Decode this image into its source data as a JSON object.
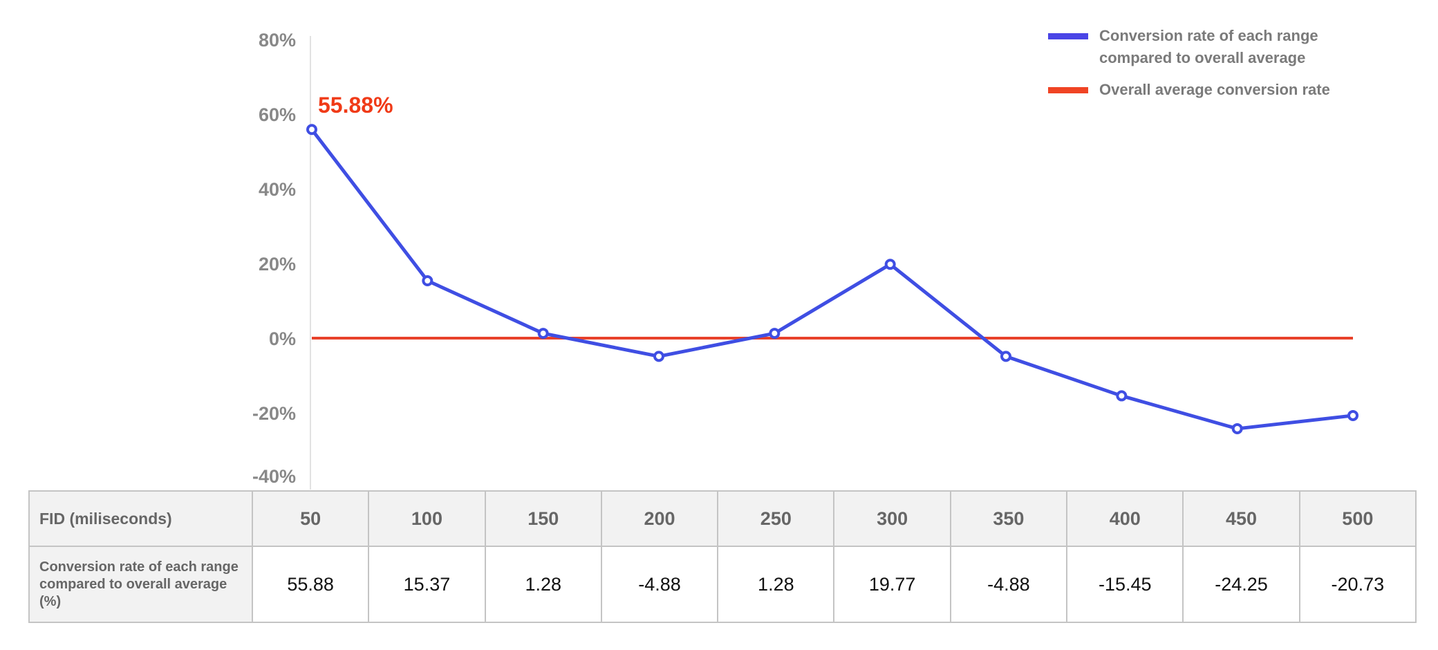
{
  "chart_data": {
    "type": "line",
    "title": "",
    "xlabel": "FID (miliseconds)",
    "ylabel": "",
    "ylim": [
      -40,
      80
    ],
    "y_ticks": [
      "80%",
      "60%",
      "40%",
      "20%",
      "0%",
      "-20%",
      "-40%"
    ],
    "y_tick_values": [
      80,
      60,
      40,
      20,
      0,
      -20,
      -40
    ],
    "categories": [
      "50",
      "100",
      "150",
      "200",
      "250",
      "300",
      "350",
      "400",
      "450",
      "500"
    ],
    "series": [
      {
        "name": "Conversion rate of each range compared to overall average",
        "color": "#3f4ee3",
        "values": [
          55.88,
          15.37,
          1.28,
          -4.88,
          1.28,
          19.77,
          -4.88,
          -15.45,
          -24.25,
          -20.73
        ],
        "markers": "hollow-circle"
      },
      {
        "name": "Overall average conversion rate",
        "color": "#e8412a",
        "values": [
          0,
          0,
          0,
          0,
          0,
          0,
          0,
          0,
          0,
          0
        ]
      }
    ],
    "annotation": {
      "text": "55.88%",
      "color": "#f03a17",
      "category": "50"
    },
    "legend_position": "top-right",
    "grid": false
  },
  "table": {
    "header_label": "FID (miliseconds)",
    "row_label": "Conversion rate of each range compared to overall average (%)",
    "columns": [
      "50",
      "100",
      "150",
      "200",
      "250",
      "300",
      "350",
      "400",
      "450",
      "500"
    ],
    "values": [
      "55.88",
      "15.37",
      "1.28",
      "-4.88",
      "1.28",
      "19.77",
      "-4.88",
      "-15.45",
      "-24.25",
      "-20.73"
    ]
  }
}
